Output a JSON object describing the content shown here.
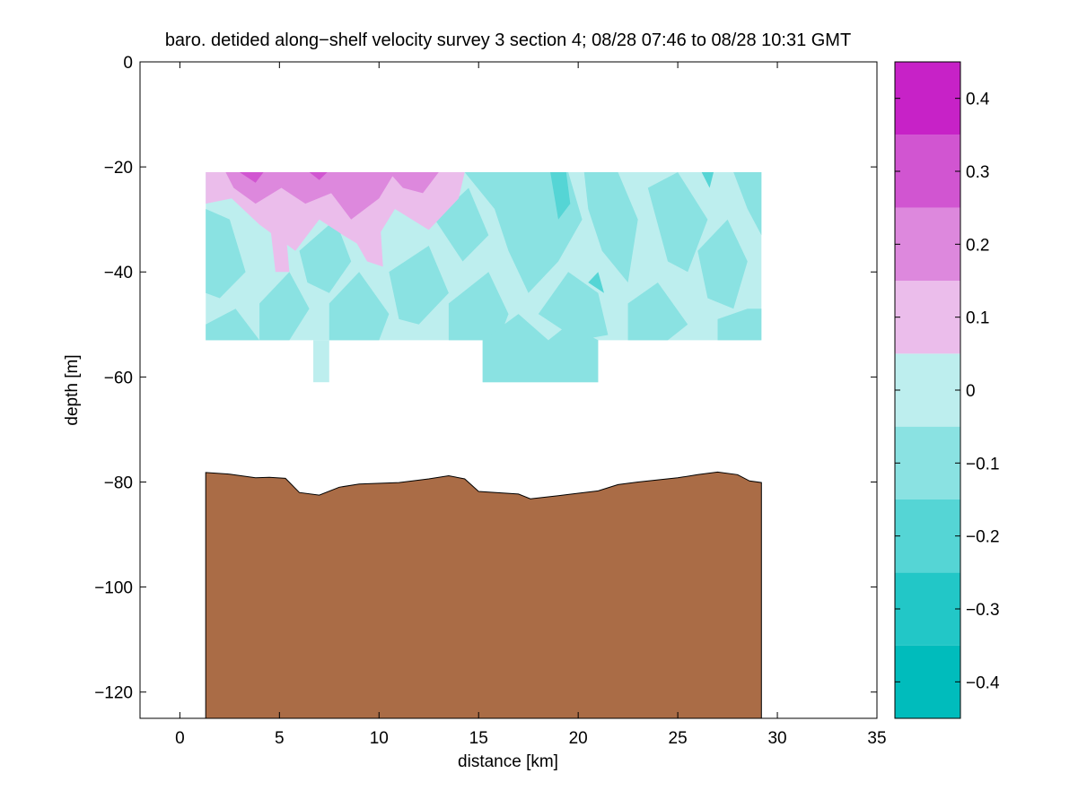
{
  "chart_data": {
    "type": "heatmap",
    "title": "baro. detided along−shelf velocity survey 3 section 4; 08/28 07:46 to 08/28 10:31 GMT",
    "xlabel": "distance [km]",
    "ylabel": "depth [m]",
    "xlim": [
      -2,
      35
    ],
    "ylim": [
      -125,
      0
    ],
    "xticks": [
      0,
      5,
      10,
      15,
      20,
      25,
      30,
      35
    ],
    "xtick_labels": [
      "0",
      "5",
      "10",
      "15",
      "20",
      "25",
      "30",
      "35"
    ],
    "yticks": [
      0,
      -20,
      -40,
      -60,
      -80,
      -100,
      -120
    ],
    "ytick_labels": [
      "0",
      "−20",
      "−40",
      "−60",
      "−80",
      "−100",
      "−120"
    ],
    "colorbar": {
      "range": [
        -0.45,
        0.45
      ],
      "levels": [
        -0.45,
        -0.35,
        -0.25,
        -0.15,
        -0.05,
        0.05,
        0.15,
        0.25,
        0.35,
        0.45
      ],
      "colors": [
        "#00bcbc",
        "#22c7c7",
        "#55d5d5",
        "#8ae2e2",
        "#bdeeee",
        "#ebbdeb",
        "#dd88dd",
        "#d155d1",
        "#c722c7",
        "#bc00bc"
      ],
      "ticks": [
        0.4,
        0.3,
        0.2,
        0.1,
        0,
        -0.1,
        -0.2,
        -0.3,
        -0.4
      ],
      "tick_labels": [
        "0.4",
        "0.3",
        "0.2",
        "0.1",
        "0",
        "−0.1",
        "−0.2",
        "−0.3",
        "−0.4"
      ]
    },
    "velocity_section": {
      "x_range_km": [
        1.3,
        29.2
      ],
      "depth_range_m": [
        -21,
        -53
      ],
      "deep_bins": [
        {
          "x": [
            6.7,
            7.5
          ],
          "depth": [
            -53,
            -61
          ]
        },
        {
          "x": [
            15.2,
            21.0
          ],
          "depth": [
            -53,
            -61
          ]
        }
      ],
      "velocity_summary": "positive (0 to 0.2) near surface at 1.3–14 km; negative (-0.1 to -0.3) elsewhere"
    },
    "bathymetry": {
      "color": "#aa6c46",
      "x": [
        1.3,
        2.5,
        3.8,
        4.5,
        5.3,
        6.0,
        7.0,
        8.0,
        9.0,
        11.0,
        12.5,
        13.5,
        14.3,
        15.0,
        17.0,
        17.6,
        19.0,
        21.0,
        22.0,
        23.0,
        25.0,
        26.0,
        27.0,
        28.0,
        28.6,
        29.2
      ],
      "depth": [
        -78.2,
        -78.5,
        -79.2,
        -79.1,
        -79.3,
        -82.0,
        -82.5,
        -81.0,
        -80.4,
        -80.1,
        -79.4,
        -78.8,
        -79.4,
        -81.8,
        -82.3,
        -83.2,
        -82.6,
        -81.7,
        -80.5,
        -80.0,
        -79.2,
        -78.6,
        -78.1,
        -78.6,
        -79.8,
        -80.1
      ]
    }
  }
}
